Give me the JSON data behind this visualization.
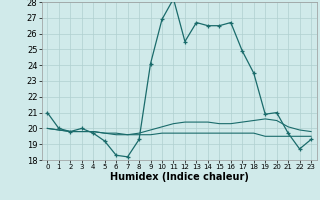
{
  "title": "",
  "xlabel": "Humidex (Indice chaleur)",
  "ylabel": "",
  "xlim": [
    -0.5,
    23.5
  ],
  "ylim": [
    18,
    28
  ],
  "xticks": [
    0,
    1,
    2,
    3,
    4,
    5,
    6,
    7,
    8,
    9,
    10,
    11,
    12,
    13,
    14,
    15,
    16,
    17,
    18,
    19,
    20,
    21,
    22,
    23
  ],
  "yticks": [
    18,
    19,
    20,
    21,
    22,
    23,
    24,
    25,
    26,
    27,
    28
  ],
  "background_color": "#d0eaea",
  "grid_color": "#b0d0d0",
  "line_color": "#1a6b6b",
  "line1_x": [
    0,
    1,
    2,
    3,
    4,
    5,
    6,
    7,
    8,
    9,
    10,
    11,
    12,
    13,
    14,
    15,
    16,
    17,
    18,
    19,
    20,
    21,
    22,
    23
  ],
  "line1_y": [
    21.0,
    20.0,
    19.8,
    20.0,
    19.7,
    19.2,
    18.3,
    18.2,
    19.3,
    24.1,
    26.9,
    28.2,
    25.5,
    26.7,
    26.5,
    26.5,
    26.7,
    24.9,
    23.5,
    20.9,
    21.0,
    19.7,
    18.7,
    19.3
  ],
  "line2_x": [
    0,
    1,
    2,
    3,
    4,
    5,
    6,
    7,
    8,
    9,
    10,
    11,
    12,
    13,
    14,
    15,
    16,
    17,
    18,
    19,
    20,
    21,
    22,
    23
  ],
  "line2_y": [
    20.0,
    19.9,
    19.8,
    19.8,
    19.8,
    19.7,
    19.7,
    19.6,
    19.7,
    19.9,
    20.1,
    20.3,
    20.4,
    20.4,
    20.4,
    20.3,
    20.3,
    20.4,
    20.5,
    20.6,
    20.5,
    20.1,
    19.9,
    19.8
  ],
  "line3_x": [
    0,
    1,
    2,
    3,
    4,
    5,
    6,
    7,
    8,
    9,
    10,
    11,
    12,
    13,
    14,
    15,
    16,
    17,
    18,
    19,
    20,
    21,
    22,
    23
  ],
  "line3_y": [
    20.0,
    19.9,
    19.8,
    19.8,
    19.8,
    19.7,
    19.6,
    19.6,
    19.6,
    19.6,
    19.7,
    19.7,
    19.7,
    19.7,
    19.7,
    19.7,
    19.7,
    19.7,
    19.7,
    19.5,
    19.5,
    19.5,
    19.5,
    19.5
  ],
  "label_fontsize": 6,
  "tick_fontsize": 5,
  "xlabel_fontsize": 7
}
